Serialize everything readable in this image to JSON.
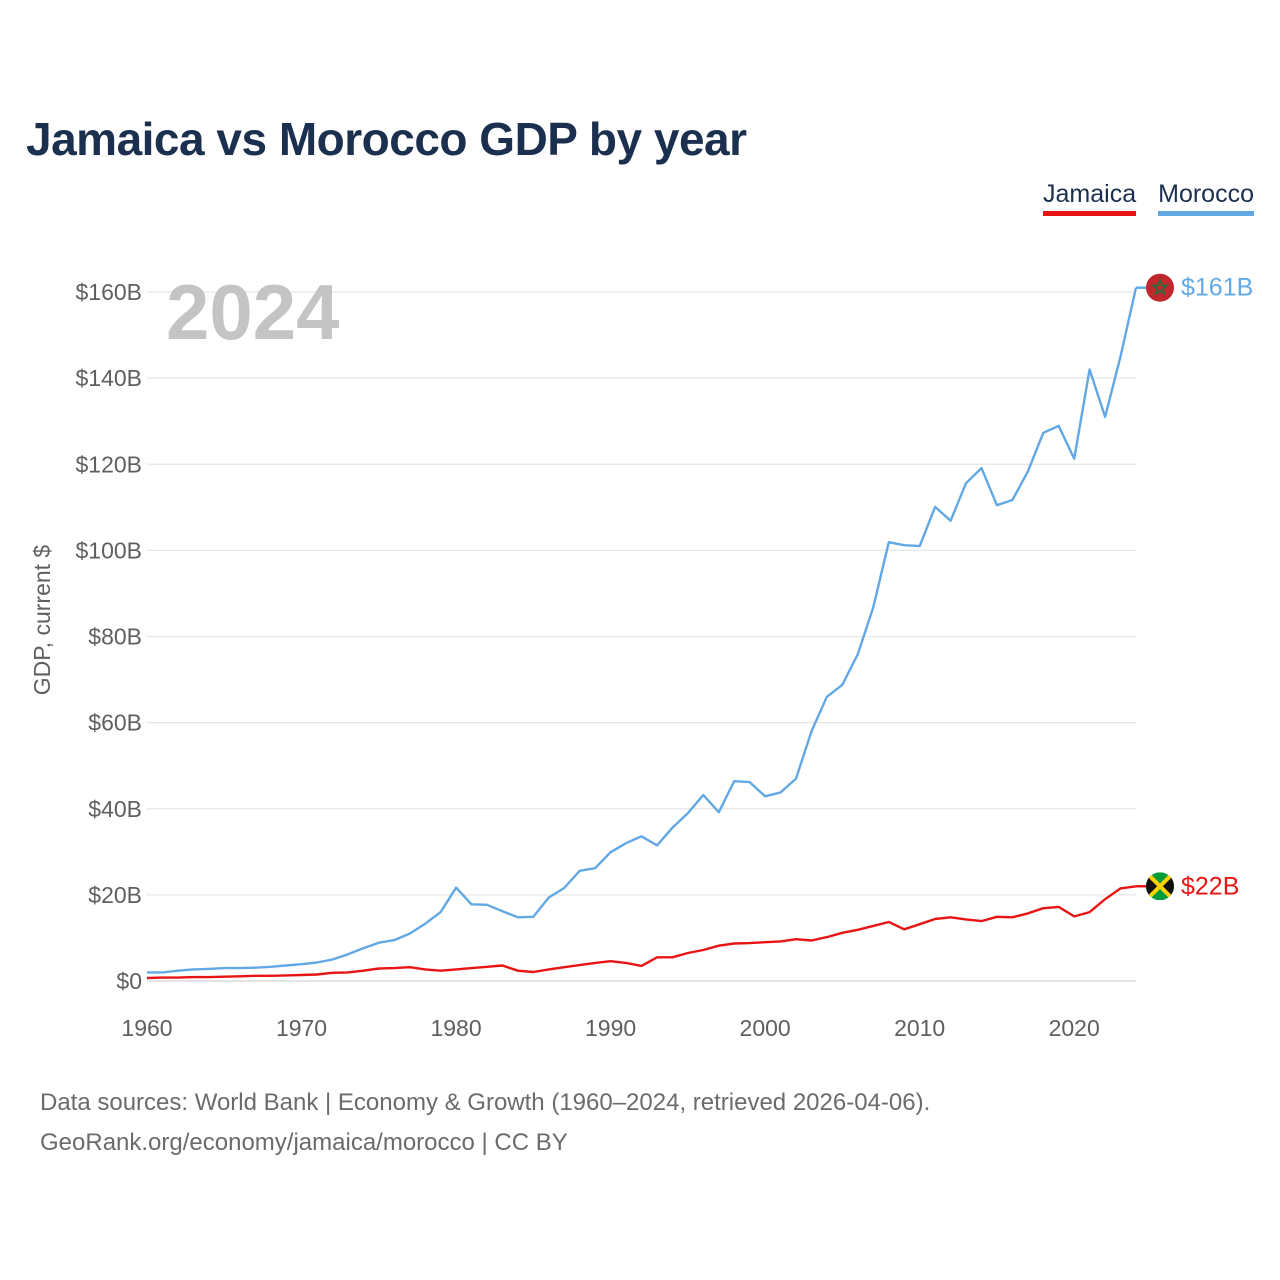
{
  "title": "Jamaica vs Morocco GDP by year",
  "legend": {
    "jamaica": "Jamaica",
    "morocco": "Morocco"
  },
  "year_display": "2024",
  "footer": {
    "line1": "Data sources: World Bank | Economy & Growth (1960–2024, retrieved 2026-04-06).",
    "line2": "GeoRank.org/economy/jamaica/morocco | CC BY"
  },
  "chart_data": {
    "type": "line",
    "title": "Jamaica vs Morocco GDP by year",
    "xlabel": "",
    "ylabel": "GDP, current $",
    "xlim": [
      1960,
      2024
    ],
    "ylim": [
      0,
      160
    ],
    "y_unit": "billions USD",
    "grid": true,
    "x_ticks": [
      1960,
      1970,
      1980,
      1990,
      2000,
      2010,
      2020
    ],
    "x_tick_labels": [
      "1960",
      "1970",
      "1980",
      "1990",
      "2000",
      "2010",
      "2020"
    ],
    "y_ticks": [
      0,
      20,
      40,
      60,
      80,
      100,
      120,
      140,
      160
    ],
    "y_tick_labels": [
      "$0",
      "$20B",
      "$40B",
      "$60B",
      "$80B",
      "$100B",
      "$120B",
      "$140B",
      "$160B"
    ],
    "x": [
      1960,
      1961,
      1962,
      1963,
      1964,
      1965,
      1966,
      1967,
      1968,
      1969,
      1970,
      1971,
      1972,
      1973,
      1974,
      1975,
      1976,
      1977,
      1978,
      1979,
      1980,
      1981,
      1982,
      1983,
      1984,
      1985,
      1986,
      1987,
      1988,
      1989,
      1990,
      1991,
      1992,
      1993,
      1994,
      1995,
      1996,
      1997,
      1998,
      1999,
      2000,
      2001,
      2002,
      2003,
      2004,
      2005,
      2006,
      2007,
      2008,
      2009,
      2010,
      2011,
      2012,
      2013,
      2014,
      2015,
      2016,
      2017,
      2018,
      2019,
      2020,
      2021,
      2022,
      2023,
      2024
    ],
    "series": [
      {
        "name": "Morocco",
        "color": "#62a8e5",
        "end_label": "$161B",
        "values": [
          2.0,
          2.0,
          2.4,
          2.7,
          2.8,
          3.0,
          3.0,
          3.1,
          3.3,
          3.6,
          3.9,
          4.3,
          5.0,
          6.2,
          7.6,
          8.9,
          9.5,
          11.0,
          13.3,
          16.0,
          21.7,
          17.8,
          17.7,
          16.2,
          14.8,
          14.9,
          19.4,
          21.6,
          25.6,
          26.2,
          29.9,
          32.0,
          33.6,
          31.5,
          35.6,
          39.0,
          43.2,
          39.2,
          46.4,
          46.2,
          42.9,
          43.8,
          47.0,
          58.0,
          66.0,
          68.8,
          75.9,
          86.8,
          101.9,
          101.2,
          101.0,
          110.1,
          106.9,
          115.6,
          119.1,
          110.5,
          111.7,
          118.3,
          127.3,
          128.9,
          121.3,
          142.0,
          131.0,
          145.0,
          161.0
        ]
      },
      {
        "name": "Jamaica",
        "color": "#e81414",
        "end_label": "$22B",
        "values": [
          0.7,
          0.8,
          0.8,
          0.9,
          0.9,
          1.0,
          1.1,
          1.2,
          1.2,
          1.3,
          1.4,
          1.5,
          1.9,
          2.0,
          2.4,
          2.9,
          3.0,
          3.2,
          2.7,
          2.4,
          2.7,
          3.0,
          3.3,
          3.6,
          2.4,
          2.1,
          2.7,
          3.2,
          3.7,
          4.2,
          4.6,
          4.2,
          3.5,
          5.5,
          5.5,
          6.5,
          7.2,
          8.2,
          8.7,
          8.8,
          9.0,
          9.2,
          9.7,
          9.4,
          10.2,
          11.2,
          11.9,
          12.8,
          13.7,
          12.0,
          13.2,
          14.4,
          14.8,
          14.3,
          13.9,
          14.9,
          14.8,
          15.7,
          16.9,
          17.2,
          15.0,
          16.0,
          19.0,
          21.5,
          22.0
        ]
      }
    ]
  }
}
